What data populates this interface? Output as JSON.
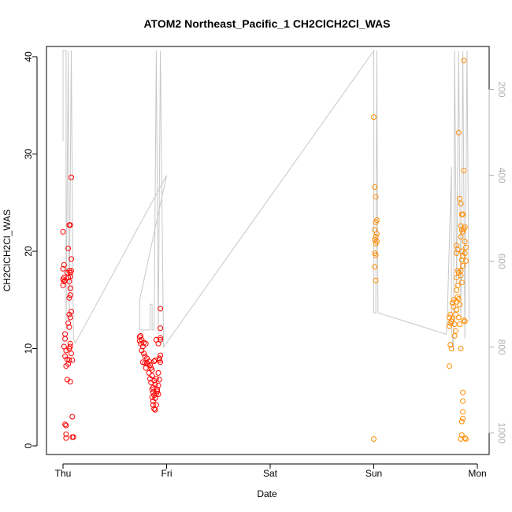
{
  "chart_data": {
    "type": "scatter",
    "title": "ATOM2 Northeast_Pacific_1 CH2ClCH2Cl_WAS",
    "xlabel": "Date",
    "ylabel": "CH2ClCH2Cl_WAS",
    "ylim": [
      0,
      40
    ],
    "y_ticks": [
      "0",
      "10",
      "20",
      "30",
      "40"
    ],
    "x_range": [
      -0.02,
      4.15
    ],
    "x_tick_values": [
      0,
      1,
      2,
      3,
      4
    ],
    "x_ticks": [
      "Thu",
      "Fri",
      "Sat",
      "Sun",
      "Mon"
    ],
    "y2_label": "",
    "y2_range_reversed": [
      100,
      1050
    ],
    "y2_ticks": [
      "200",
      "400",
      "600",
      "800",
      "1000"
    ],
    "y2_tick_values": [
      200,
      400,
      600,
      800,
      1000
    ],
    "grid": false,
    "legend": "none",
    "colors": {
      "flight1": "#ff0000",
      "flight2": "#ff8c00",
      "line": "#c8c8c8",
      "axis": "#000000",
      "right_axis": "#b0b0b0"
    },
    "series": [
      {
        "color": "#ff0000",
        "points": [
          [
            0.0,
            22.0
          ],
          [
            0.01,
            18.6
          ],
          [
            0.0,
            18.2
          ],
          [
            0.01,
            17.3
          ],
          [
            0.0,
            17.1
          ],
          [
            0.01,
            16.9
          ],
          [
            0.0,
            16.5
          ],
          [
            0.02,
            17.0
          ],
          [
            0.02,
            11.5
          ],
          [
            0.02,
            11.0
          ],
          [
            0.01,
            10.2
          ],
          [
            0.03,
            9.8
          ],
          [
            0.02,
            9.2
          ],
          [
            0.04,
            8.9
          ],
          [
            0.03,
            8.2
          ],
          [
            0.05,
            8.4
          ],
          [
            0.04,
            6.8
          ],
          [
            0.02,
            2.2
          ],
          [
            0.03,
            2.1
          ],
          [
            0.03,
            1.2
          ],
          [
            0.03,
            0.8
          ],
          [
            0.04,
            17.8
          ],
          [
            0.05,
            17.3
          ],
          [
            0.05,
            20.3
          ],
          [
            0.06,
            22.7
          ],
          [
            0.07,
            22.7
          ],
          [
            0.06,
            18.0
          ],
          [
            0.07,
            17.8
          ],
          [
            0.08,
            18.0
          ],
          [
            0.07,
            17.4
          ],
          [
            0.06,
            16.9
          ],
          [
            0.07,
            16.2
          ],
          [
            0.06,
            15.2
          ],
          [
            0.07,
            15.5
          ],
          [
            0.06,
            13.5
          ],
          [
            0.07,
            13.2
          ],
          [
            0.05,
            12.6
          ],
          [
            0.08,
            13.8
          ],
          [
            0.06,
            12.2
          ],
          [
            0.07,
            10.5
          ],
          [
            0.07,
            10.2
          ],
          [
            0.06,
            10.0
          ],
          [
            0.08,
            9.5
          ],
          [
            0.06,
            8.8
          ],
          [
            0.09,
            8.8
          ],
          [
            0.07,
            6.6
          ],
          [
            0.08,
            27.6
          ],
          [
            0.09,
            3.0
          ],
          [
            0.09,
            0.9
          ],
          [
            0.1,
            0.9
          ],
          [
            0.08,
            19.2
          ],
          [
            0.74,
            11.2
          ],
          [
            0.75,
            11.3
          ],
          [
            0.74,
            10.8
          ],
          [
            0.76,
            10.9
          ],
          [
            0.75,
            10.5
          ],
          [
            0.77,
            10.2
          ],
          [
            0.78,
            10.6
          ],
          [
            0.76,
            9.8
          ],
          [
            0.78,
            9.5
          ],
          [
            0.79,
            9.2
          ],
          [
            0.8,
            10.5
          ],
          [
            0.77,
            8.6
          ],
          [
            0.79,
            8.5
          ],
          [
            0.81,
            8.5
          ],
          [
            0.8,
            8.0
          ],
          [
            0.82,
            8.4
          ],
          [
            0.81,
            9.0
          ],
          [
            0.83,
            8.7
          ],
          [
            0.84,
            8.3
          ],
          [
            0.83,
            7.5
          ],
          [
            0.85,
            8.0
          ],
          [
            0.84,
            6.9
          ],
          [
            0.86,
            7.2
          ],
          [
            0.85,
            6.5
          ],
          [
            0.86,
            5.8
          ],
          [
            0.87,
            5.5
          ],
          [
            0.86,
            5.0
          ],
          [
            0.87,
            4.6
          ],
          [
            0.88,
            5.2
          ],
          [
            0.87,
            4.2
          ],
          [
            0.88,
            3.8
          ],
          [
            0.89,
            3.7
          ],
          [
            0.9,
            4.2
          ],
          [
            0.89,
            4.9
          ],
          [
            0.9,
            5.4
          ],
          [
            0.91,
            5.6
          ],
          [
            0.92,
            5.3
          ],
          [
            0.91,
            5.8
          ],
          [
            0.92,
            6.2
          ],
          [
            0.88,
            6.7
          ],
          [
            0.9,
            6.9
          ],
          [
            0.92,
            7.5
          ],
          [
            0.93,
            6.8
          ],
          [
            0.94,
            8.6
          ],
          [
            0.93,
            8.8
          ],
          [
            0.94,
            9.3
          ],
          [
            0.93,
            9.0
          ],
          [
            0.92,
            10.5
          ],
          [
            0.94,
            10.9
          ],
          [
            0.94,
            11.1
          ],
          [
            0.94,
            12.1
          ],
          [
            0.94,
            14.1
          ],
          [
            0.89,
            8.8
          ],
          [
            0.88,
            8.7
          ],
          [
            0.86,
            7.8
          ],
          [
            0.9,
            10.9
          ],
          [
            0.87,
            6.0
          ],
          [
            0.89,
            6.3
          ]
        ]
      },
      {
        "color": "#ff8c00",
        "points": [
          [
            3.0,
            33.8
          ],
          [
            3.01,
            26.6
          ],
          [
            3.02,
            25.6
          ],
          [
            3.03,
            23.2
          ],
          [
            3.02,
            23.0
          ],
          [
            3.01,
            22.2
          ],
          [
            3.03,
            21.8
          ],
          [
            3.02,
            21.5
          ],
          [
            3.01,
            21.2
          ],
          [
            3.03,
            21.0
          ],
          [
            3.02,
            20.8
          ],
          [
            3.01,
            19.8
          ],
          [
            3.02,
            19.6
          ],
          [
            3.01,
            18.4
          ],
          [
            3.02,
            17.0
          ],
          [
            3.0,
            0.7
          ],
          [
            3.74,
            13.5
          ],
          [
            3.73,
            13.2
          ],
          [
            3.74,
            12.6
          ],
          [
            3.73,
            12.3
          ],
          [
            3.74,
            10.4
          ],
          [
            3.75,
            10.0
          ],
          [
            3.73,
            8.2
          ],
          [
            3.75,
            12.8
          ],
          [
            3.76,
            13.0
          ],
          [
            3.77,
            14.3
          ],
          [
            3.76,
            14.7
          ],
          [
            3.77,
            15.0
          ],
          [
            3.78,
            11.3
          ],
          [
            3.79,
            11.8
          ],
          [
            3.78,
            12.5
          ],
          [
            3.79,
            13.5
          ],
          [
            3.8,
            14.0
          ],
          [
            3.8,
            14.8
          ],
          [
            3.81,
            15.3
          ],
          [
            3.8,
            16.0
          ],
          [
            3.81,
            16.5
          ],
          [
            3.8,
            17.3
          ],
          [
            3.81,
            18.0
          ],
          [
            3.82,
            17.8
          ],
          [
            3.8,
            19.8
          ],
          [
            3.81,
            20.2
          ],
          [
            3.8,
            20.6
          ],
          [
            3.82,
            15.1
          ],
          [
            3.83,
            14.5
          ],
          [
            3.82,
            13.2
          ],
          [
            3.83,
            12.5
          ],
          [
            3.84,
            10.0
          ],
          [
            3.82,
            32.2
          ],
          [
            3.83,
            25.4
          ],
          [
            3.84,
            24.9
          ],
          [
            3.85,
            23.8
          ],
          [
            3.86,
            23.8
          ],
          [
            3.84,
            22.6
          ],
          [
            3.85,
            22.2
          ],
          [
            3.86,
            22.0
          ],
          [
            3.84,
            21.5
          ],
          [
            3.85,
            20.0
          ],
          [
            3.86,
            19.5
          ],
          [
            3.85,
            19.1
          ],
          [
            3.86,
            18.5
          ],
          [
            3.84,
            18.0
          ],
          [
            3.85,
            16.8
          ],
          [
            3.84,
            17.5
          ],
          [
            3.87,
            39.6
          ],
          [
            3.87,
            28.3
          ],
          [
            3.88,
            22.5
          ],
          [
            3.87,
            22.3
          ],
          [
            3.88,
            21.0
          ],
          [
            3.89,
            20.4
          ],
          [
            3.88,
            19.8
          ],
          [
            3.89,
            19.0
          ],
          [
            3.87,
            12.9
          ],
          [
            3.88,
            12.8
          ],
          [
            3.86,
            5.5
          ],
          [
            3.86,
            4.6
          ],
          [
            3.86,
            3.5
          ],
          [
            3.86,
            2.8
          ],
          [
            3.85,
            2.5
          ],
          [
            3.85,
            1.1
          ],
          [
            3.84,
            0.7
          ],
          [
            3.88,
            0.8
          ],
          [
            3.89,
            0.7
          ]
        ]
      }
    ]
  }
}
